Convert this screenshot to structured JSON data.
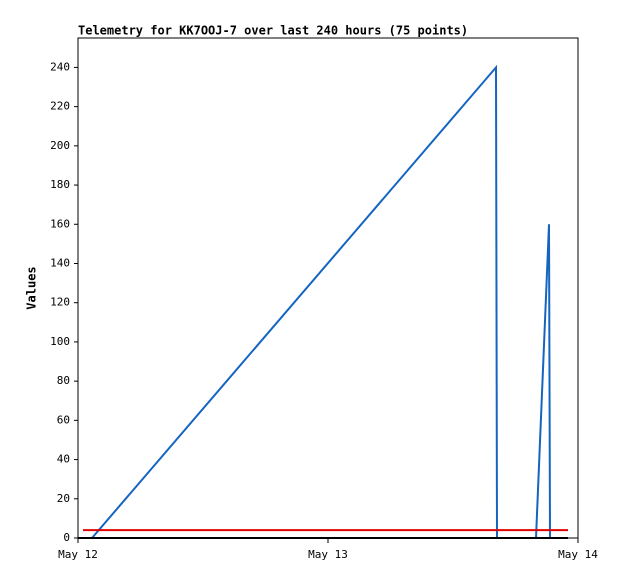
{
  "chart_data": {
    "type": "line",
    "title": "Telemetry for KK7OOJ-7 over last 240 hours (75 points)",
    "y_label": "Values",
    "xlim": [
      0,
      2
    ],
    "xticks": [
      {
        "value": 0,
        "label": "May 12"
      },
      {
        "value": 1,
        "label": "May 13"
      },
      {
        "value": 2,
        "label": "May 14"
      }
    ],
    "ylim": [
      0,
      255
    ],
    "yticks": [
      0,
      20,
      40,
      60,
      80,
      100,
      120,
      140,
      160,
      180,
      200,
      220,
      240
    ],
    "grid": false,
    "series": [
      {
        "color": "#1565c0",
        "x": [
          0.056,
          1.672,
          1.676,
          1.832,
          1.884,
          1.888
        ],
        "values": [
          0,
          240,
          0,
          0,
          160,
          0
        ]
      },
      {
        "color": "#e00000",
        "x": [
          0.02,
          1.96
        ],
        "values": [
          4,
          4
        ]
      },
      {
        "color": "#000000",
        "x": [
          0.0,
          1.96
        ],
        "values": [
          0,
          0
        ]
      }
    ]
  }
}
